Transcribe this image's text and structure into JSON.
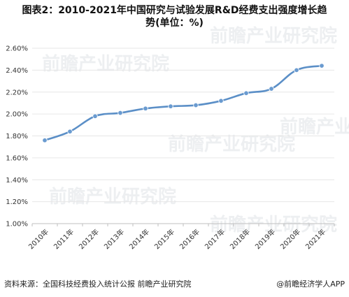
{
  "title_line1": "图表2：2010-2021年中国研究与试验发展R&D经费支出强度增长趋",
  "title_line2": "势(单位：%)",
  "source": "资料来源：全国科技经费投入统计公报 前瞻产业研究院",
  "brand": "@前瞻经济学人APP",
  "watermark": "前瞻产业研究院",
  "colors": {
    "line": "#5b8fc7",
    "marker": "#6a9bd0",
    "grid": "#e6e6e6",
    "axis": "#bfbfbf"
  },
  "chart_data": {
    "type": "line",
    "title": "图表2：2010-2021年中国研究与试验发展R&D经费支出强度增长趋势(单位：%)",
    "xlabel": "",
    "ylabel": "",
    "categories": [
      "2010年",
      "2011年",
      "2012年",
      "2013年",
      "2014年",
      "2015年",
      "2016年",
      "2017年",
      "2018年",
      "2019年",
      "2020年",
      "2021年"
    ],
    "values": [
      1.76,
      1.84,
      1.98,
      2.01,
      2.05,
      2.07,
      2.08,
      2.12,
      2.19,
      2.23,
      2.4,
      2.44
    ],
    "ylim": [
      1.0,
      2.6
    ],
    "yticks": [
      "1.00%",
      "1.20%",
      "1.40%",
      "1.60%",
      "1.80%",
      "2.00%",
      "2.20%",
      "2.40%",
      "2.60%"
    ],
    "grid": true,
    "legend": "none"
  }
}
